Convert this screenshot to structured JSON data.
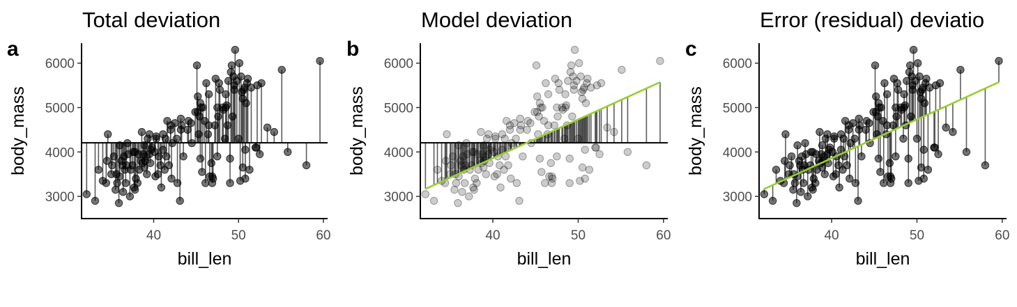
{
  "figure": {
    "panels": [
      {
        "tag": "a",
        "title": "Total deviation",
        "xlabel": "bill_len",
        "ylabel": "body_mass"
      },
      {
        "tag": "b",
        "title": "Model deviation",
        "xlabel": "bill_len",
        "ylabel": "body_mass"
      },
      {
        "tag": "c",
        "title": "Error (residual) deviatio",
        "xlabel": "bill_len",
        "ylabel": "body_mass"
      }
    ]
  },
  "colors": {
    "points": "#000000",
    "segments": "#404040",
    "mean_line": "#000000",
    "fit_line": "#9acd32"
  },
  "chart_data": [
    {
      "type": "scatter",
      "tag": "a",
      "title": "Total deviation",
      "xlabel": "bill_len",
      "ylabel": "body_mass",
      "xlim": [
        31.5,
        60.5
      ],
      "ylim": [
        2500,
        6450
      ],
      "xticks": [
        40,
        50,
        60
      ],
      "yticks": [
        3000,
        4000,
        5000,
        6000
      ],
      "show_points": true,
      "point_opacity": 0.55,
      "segments": "point_to_mean",
      "show_mean_line": true,
      "show_fit_line": false,
      "grid": false
    },
    {
      "type": "scatter",
      "tag": "b",
      "title": "Model deviation",
      "xlabel": "bill_len",
      "ylabel": "body_mass",
      "xlim": [
        31.5,
        60.5
      ],
      "ylim": [
        2500,
        6450
      ],
      "xticks": [
        40,
        50,
        60
      ],
      "yticks": [
        3000,
        4000,
        5000,
        6000
      ],
      "show_points": true,
      "point_opacity": 0.2,
      "segments": "fit_to_mean",
      "show_mean_line": true,
      "show_fit_line": true,
      "grid": false
    },
    {
      "type": "scatter",
      "tag": "c",
      "title": "Error (residual) deviatio",
      "xlabel": "bill_len",
      "ylabel": "body_mass",
      "xlim": [
        31.5,
        60.5
      ],
      "ylim": [
        2500,
        6450
      ],
      "xticks": [
        40,
        50,
        60
      ],
      "yticks": [
        3000,
        4000,
        5000,
        6000
      ],
      "show_points": true,
      "point_opacity": 0.55,
      "segments": "point_to_fit",
      "show_mean_line": false,
      "show_fit_line": true,
      "grid": false
    }
  ],
  "shared_data": {
    "mean_body_mass": 4207,
    "fit_line": {
      "intercept": 362,
      "slope": 87.4
    },
    "points": {
      "x": [
        32.1,
        33.1,
        33.5,
        34.0,
        34.4,
        34.5,
        34.6,
        35.0,
        35.1,
        35.3,
        35.5,
        35.6,
        35.7,
        35.9,
        36.0,
        36.2,
        36.3,
        36.4,
        36.5,
        36.6,
        36.7,
        36.8,
        36.9,
        37.0,
        37.2,
        37.3,
        37.5,
        37.6,
        37.7,
        37.8,
        37.9,
        38.1,
        38.2,
        38.3,
        38.5,
        38.6,
        38.7,
        38.8,
        38.9,
        39.0,
        39.1,
        39.2,
        39.3,
        39.5,
        39.6,
        39.7,
        39.8,
        40.1,
        40.2,
        40.3,
        40.5,
        40.6,
        40.8,
        40.9,
        41.1,
        41.3,
        41.4,
        41.5,
        41.6,
        41.8,
        42.0,
        42.1,
        42.2,
        42.5,
        42.7,
        42.8,
        43.1,
        43.2,
        43.3,
        43.5,
        44.0,
        44.1,
        44.4,
        44.9,
        45.1,
        45.2,
        45.3,
        45.4,
        45.5,
        45.6,
        45.7,
        45.8,
        46.0,
        46.1,
        46.2,
        46.4,
        46.5,
        46.6,
        46.8,
        46.9,
        47.0,
        47.2,
        47.3,
        47.5,
        47.6,
        47.7,
        47.8,
        48.1,
        48.2,
        48.4,
        48.5,
        48.6,
        48.7,
        48.8,
        49.0,
        49.1,
        49.2,
        49.3,
        49.4,
        49.5,
        49.6,
        49.8,
        50.0,
        50.1,
        50.2,
        50.3,
        50.4,
        50.5,
        50.6,
        50.7,
        50.8,
        50.9,
        51.0,
        51.1,
        51.3,
        51.5,
        52.0,
        52.1,
        52.2,
        52.5,
        52.7,
        53.4,
        54.2,
        55.1,
        55.8,
        58.0,
        59.6,
        36.0,
        37.8,
        38.9,
        39.5,
        40.3,
        41.1,
        42.0,
        43.2,
        45.5,
        46.5,
        47.5,
        48.5,
        49.5,
        50.5,
        46.9,
        49.0,
        50.8,
        45.2,
        44.5
      ],
      "y": [
        3050,
        2900,
        3600,
        3350,
        3300,
        3800,
        4400,
        3500,
        3700,
        3900,
        3150,
        3500,
        3300,
        2850,
        3450,
        3800,
        3700,
        3100,
        3900,
        3600,
        3300,
        3700,
        4200,
        3950,
        3000,
        3600,
        3700,
        4000,
        3200,
        4000,
        3400,
        3300,
        3950,
        3600,
        3800,
        4450,
        3750,
        3950,
        3650,
        3800,
        3900,
        3500,
        4300,
        3950,
        3750,
        4050,
        4100,
        4000,
        3450,
        4350,
        3500,
        3900,
        3700,
        3200,
        4050,
        3600,
        4300,
        3900,
        4700,
        3700,
        4600,
        3400,
        4200,
        4650,
        4300,
        3300,
        2900,
        4750,
        4600,
        3900,
        4500,
        4700,
        4650,
        4900,
        5950,
        5250,
        4400,
        4800,
        3850,
        5000,
        3550,
        5000,
        4700,
        3300,
        5550,
        4400,
        5300,
        3450,
        3750,
        3300,
        3400,
        4600,
        5650,
        3900,
        4800,
        5550,
        5400,
        5000,
        4950,
        4300,
        5000,
        5050,
        4600,
        5600,
        3300,
        5800,
        5950,
        4800,
        5700,
        5500,
        6300,
        5600,
        4300,
        6000,
        3350,
        5700,
        5350,
        3650,
        5400,
        5450,
        4050,
        5100,
        5550,
        5650,
        3600,
        5450,
        4100,
        4100,
        5500,
        3950,
        5550,
        4550,
        4450,
        5850,
        4000,
        3700,
        6050,
        4150,
        3150,
        4150,
        4400,
        4300,
        4400,
        4500,
        4500,
        5100,
        4600,
        5000,
        5300,
        5400,
        5200,
        3450,
        3850,
        3400,
        4900,
        4200
      ],
      "opacity_panel_a_c": 0.55,
      "opacity_panel_b": 0.2
    }
  }
}
